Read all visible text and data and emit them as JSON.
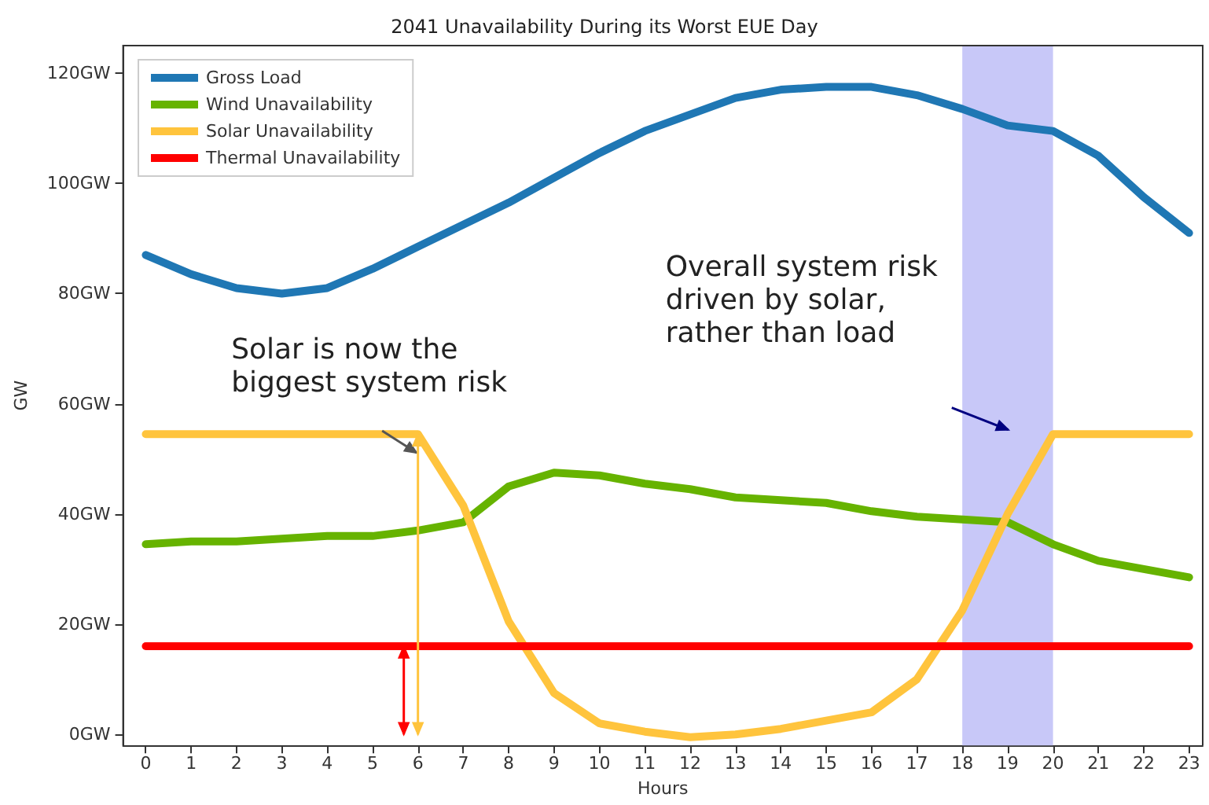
{
  "chart_data": {
    "type": "line",
    "title": "2041 Unavailability During its Worst EUE Day",
    "xlabel": "Hours",
    "ylabel": "GW",
    "x": [
      0,
      1,
      2,
      3,
      4,
      5,
      6,
      7,
      8,
      9,
      10,
      11,
      12,
      13,
      14,
      15,
      16,
      17,
      18,
      19,
      20,
      21,
      22,
      23
    ],
    "series": [
      {
        "name": "Gross Load",
        "color": "#1f77b4",
        "values": [
          87,
          83.5,
          81,
          80,
          81,
          84.5,
          88.5,
          92.5,
          96.5,
          101,
          105.5,
          109.5,
          112.5,
          115.5,
          117,
          117.5,
          117.5,
          116,
          113.5,
          110.5,
          109.5,
          105,
          97.5,
          91
        ]
      },
      {
        "name": "Wind Unavailability",
        "color": "#66b300",
        "values": [
          34.5,
          35,
          35,
          35.5,
          36,
          36,
          37,
          38.5,
          45,
          47.5,
          47,
          45.5,
          44.5,
          43,
          42.5,
          42,
          40.5,
          39.5,
          39,
          38.5,
          34.5,
          31.5,
          30,
          28.5
        ]
      },
      {
        "name": "Solar Unavailability",
        "color": "#ffc43d",
        "values": [
          54.5,
          54.5,
          54.5,
          54.5,
          54.5,
          54.5,
          54.5,
          41.5,
          20.5,
          7.5,
          2,
          0.5,
          -0.5,
          0,
          1,
          2.5,
          4,
          10,
          22.5,
          40,
          54.5,
          54.5,
          54.5,
          54.5
        ]
      },
      {
        "name": "Thermal Unavailability",
        "color": "#ff0000",
        "values": [
          16,
          16,
          16,
          16,
          16,
          16,
          16,
          16,
          16,
          16,
          16,
          16,
          16,
          16,
          16,
          16,
          16,
          16,
          16,
          16,
          16,
          16,
          16,
          16
        ]
      }
    ],
    "xlim": [
      -0.5,
      23.3
    ],
    "xticks": [
      0,
      1,
      2,
      3,
      4,
      5,
      6,
      7,
      8,
      9,
      10,
      11,
      12,
      13,
      14,
      15,
      16,
      17,
      18,
      19,
      20,
      21,
      22,
      23
    ],
    "ylim": [
      -2,
      125
    ],
    "yticks": [
      {
        "value": 0,
        "label": "0GW"
      },
      {
        "value": 20,
        "label": "20GW"
      },
      {
        "value": 40,
        "label": "40GW"
      },
      {
        "value": 60,
        "label": "60GW"
      },
      {
        "value": 80,
        "label": "80GW"
      },
      {
        "value": 100,
        "label": "100GW"
      },
      {
        "value": 120,
        "label": "120GW"
      }
    ],
    "bands": [
      {
        "axis": "x",
        "from": 18,
        "to": 20,
        "label": null,
        "color": "#c8c8f8"
      }
    ],
    "annotations": [
      "Solar is now the\nbiggest system risk",
      "Overall system risk\ndriven by solar,\nrather than load"
    ],
    "legend": "top left",
    "grid": false,
    "marker": "none",
    "line_style": "solid"
  }
}
